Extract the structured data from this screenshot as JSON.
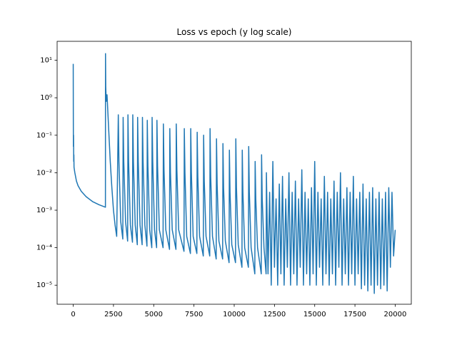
{
  "chart_data": {
    "type": "line",
    "title": "Loss vs epoch (y log scale)",
    "yscale": "log",
    "color": "#1f77b4",
    "xlim": [
      -1000,
      21000
    ],
    "ylim": [
      3.1e-06,
      32
    ],
    "xticks": [
      0,
      2500,
      5000,
      7500,
      10000,
      12500,
      15000,
      17500,
      20000
    ],
    "yticks": [
      {
        "value": 1e-05,
        "label": "10⁻⁵"
      },
      {
        "value": 0.0001,
        "label": "10⁻⁴"
      },
      {
        "value": 0.001,
        "label": "10⁻³"
      },
      {
        "value": 0.01,
        "label": "10⁻²"
      },
      {
        "value": 0.1,
        "label": "10⁻¹"
      },
      {
        "value": 1,
        "label": "10⁰"
      },
      {
        "value": 10,
        "label": "10¹"
      }
    ],
    "x": [
      0,
      5,
      10,
      20,
      30,
      40,
      50,
      100,
      200,
      300,
      500,
      800,
      1200,
      1600,
      2000,
      2005,
      2020,
      2050,
      2100,
      2200,
      2300,
      2400,
      2500,
      2600,
      2700,
      2800,
      2840,
      2950,
      3080,
      3100,
      3140,
      3250,
      3380,
      3400,
      3440,
      3550,
      3680,
      3700,
      3740,
      3850,
      3980,
      4000,
      4040,
      4150,
      4280,
      4300,
      4340,
      4450,
      4580,
      4600,
      4640,
      4750,
      4880,
      4900,
      4940,
      5050,
      5180,
      5200,
      5240,
      5350,
      5580,
      5600,
      5640,
      5750,
      5980,
      6000,
      6040,
      6150,
      6380,
      6400,
      6440,
      6550,
      6880,
      6900,
      6940,
      7050,
      7280,
      7300,
      7340,
      7450,
      7680,
      7700,
      7740,
      7850,
      8080,
      8100,
      8140,
      8250,
      8480,
      8500,
      8540,
      8650,
      8880,
      8900,
      8940,
      9050,
      9280,
      9300,
      9340,
      9450,
      9680,
      9700,
      9740,
      9850,
      10080,
      10100,
      10140,
      10250,
      10480,
      10500,
      10540,
      10650,
      10880,
      10900,
      10940,
      11050,
      11280,
      11300,
      11340,
      11450,
      11680,
      11700,
      11740,
      11850,
      11980,
      12000,
      12100,
      12200,
      12300,
      12400,
      12500,
      12600,
      12700,
      12800,
      12900,
      13000,
      13100,
      13200,
      13300,
      13400,
      13500,
      13600,
      13700,
      13800,
      13900,
      14000,
      14100,
      14200,
      14300,
      14400,
      14500,
      14600,
      14700,
      14800,
      14900,
      15000,
      15100,
      15200,
      15300,
      15400,
      15500,
      15600,
      15700,
      15800,
      15900,
      16000,
      16100,
      16200,
      16300,
      16400,
      16500,
      16600,
      16700,
      16800,
      16900,
      17000,
      17100,
      17200,
      17300,
      17400,
      17500,
      17600,
      17700,
      17800,
      17900,
      18000,
      18100,
      18200,
      18300,
      18400,
      18500,
      18600,
      18700,
      18800,
      18900,
      19000,
      19100,
      19200,
      19300,
      19400,
      19500,
      19600,
      19700,
      19800,
      19900,
      20000
    ],
    "values": [
      8,
      0.5,
      0.05,
      0.1,
      0.02,
      0.03,
      0.014,
      0.01,
      0.006,
      0.0045,
      0.0032,
      0.0023,
      0.0017,
      0.0014,
      0.0012,
      15,
      2.0,
      0.8,
      1.2,
      0.15,
      0.02,
      0.004,
      0.001,
      0.0004,
      0.0002,
      0.35,
      0.02,
      0.0005,
      0.00017,
      0.3,
      0.02,
      0.0005,
      0.00015,
      0.35,
      0.02,
      0.0004,
      0.00014,
      0.35,
      0.02,
      0.0004,
      0.00012,
      0.3,
      0.02,
      0.0004,
      0.00012,
      0.3,
      0.02,
      0.0004,
      0.00011,
      0.25,
      0.015,
      0.0003,
      0.0001,
      0.3,
      0.02,
      0.0003,
      0.0001,
      0.25,
      0.015,
      0.0003,
      0.0001,
      0.2,
      0.012,
      0.0003,
      9e-05,
      0.15,
      0.01,
      0.0003,
      9e-05,
      0.2,
      0.012,
      0.0003,
      8e-05,
      0.15,
      0.01,
      0.0002,
      7e-05,
      0.15,
      0.01,
      0.0002,
      7e-05,
      0.12,
      0.008,
      0.0002,
      6e-05,
      0.1,
      0.006,
      0.0002,
      6e-05,
      0.15,
      0.008,
      0.0002,
      5e-05,
      0.08,
      0.005,
      0.00015,
      5e-05,
      0.06,
      0.004,
      0.00015,
      4e-05,
      0.04,
      0.003,
      0.00012,
      4e-05,
      0.08,
      0.004,
      0.00012,
      3e-05,
      0.04,
      0.003,
      0.0001,
      3e-05,
      0.05,
      0.003,
      0.0001,
      2e-05,
      0.02,
      0.002,
      0.0001,
      2e-05,
      0.03,
      0.002,
      0.0001,
      2e-05,
      0.01,
      2e-05,
      0.003,
      1e-05,
      0.02,
      3e-05,
      0.002,
      1e-05,
      0.005,
      2e-05,
      0.008,
      1e-05,
      0.002,
      3e-05,
      0.01,
      1e-05,
      0.003,
      2e-05,
      0.006,
      1e-05,
      0.002,
      3e-05,
      0.012,
      1e-05,
      0.003,
      2e-05,
      0.002,
      1e-05,
      0.004,
      2e-05,
      0.02,
      1e-05,
      0.003,
      3e-05,
      0.002,
      1e-05,
      0.008,
      2e-05,
      0.003,
      1e-05,
      0.002,
      2e-05,
      0.006,
      1e-05,
      0.003,
      3e-05,
      0.01,
      1e-05,
      0.002,
      2e-05,
      0.004,
      1e-05,
      0.003,
      2e-05,
      0.008,
      1e-05,
      0.002,
      2e-05,
      0.003,
      8e-06,
      0.005,
      1e-05,
      0.002,
      7e-06,
      0.003,
      1e-05,
      0.004,
      6e-06,
      0.002,
      1e-05,
      0.003,
      8e-06,
      0.002,
      1e-05,
      0.003,
      7e-06,
      0.004,
      3e-05,
      0.003,
      6e-05,
      0.0003
    ]
  }
}
